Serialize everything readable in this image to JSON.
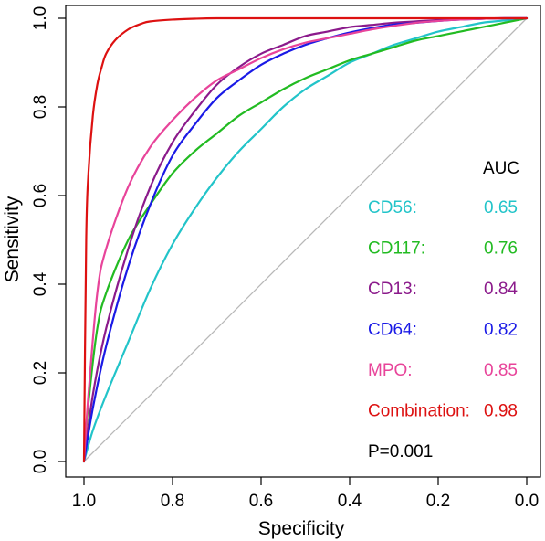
{
  "chart_data": {
    "type": "line",
    "title": "",
    "xlabel": "Specificity",
    "ylabel": "Sensitivity",
    "xlim": [
      1.0,
      0.0
    ],
    "ylim": [
      0.0,
      1.0
    ],
    "x_reversed": true,
    "grid": false,
    "xticks": [
      "1.0",
      "0.8",
      "0.6",
      "0.4",
      "0.2",
      "0.0"
    ],
    "yticks": [
      "0.0",
      "0.2",
      "0.4",
      "0.6",
      "0.8",
      "1.0"
    ],
    "reference_line": {
      "from": [
        1.0,
        0.0
      ],
      "to": [
        0.0,
        1.0
      ],
      "color": "#b8b8b8"
    },
    "legend": {
      "header": "AUC",
      "placement": "right",
      "footer": "P=0.001"
    },
    "series": [
      {
        "name": "CD56:",
        "auc": "0.65",
        "color": "#22c4c9",
        "x": [
          1.0,
          0.98,
          0.95,
          0.9,
          0.85,
          0.8,
          0.75,
          0.7,
          0.65,
          0.6,
          0.55,
          0.5,
          0.45,
          0.4,
          0.35,
          0.3,
          0.25,
          0.2,
          0.15,
          0.1,
          0.05,
          0.0
        ],
        "y": [
          0.0,
          0.07,
          0.15,
          0.27,
          0.39,
          0.49,
          0.57,
          0.64,
          0.7,
          0.75,
          0.8,
          0.84,
          0.87,
          0.9,
          0.92,
          0.94,
          0.955,
          0.97,
          0.98,
          0.99,
          0.995,
          1.0
        ]
      },
      {
        "name": "CD117:",
        "auc": "0.76",
        "color": "#22bb22",
        "x": [
          1.0,
          0.99,
          0.97,
          0.95,
          0.9,
          0.85,
          0.8,
          0.75,
          0.7,
          0.65,
          0.6,
          0.55,
          0.5,
          0.45,
          0.4,
          0.35,
          0.3,
          0.25,
          0.2,
          0.15,
          0.1,
          0.05,
          0.0
        ],
        "y": [
          0.0,
          0.13,
          0.3,
          0.38,
          0.5,
          0.58,
          0.65,
          0.7,
          0.74,
          0.78,
          0.81,
          0.84,
          0.865,
          0.885,
          0.905,
          0.92,
          0.935,
          0.95,
          0.96,
          0.97,
          0.98,
          0.99,
          1.0
        ]
      },
      {
        "name": "CD13:",
        "auc": "0.84",
        "color": "#8b1a8b",
        "x": [
          1.0,
          0.98,
          0.95,
          0.9,
          0.85,
          0.8,
          0.75,
          0.7,
          0.65,
          0.6,
          0.55,
          0.5,
          0.45,
          0.4,
          0.35,
          0.3,
          0.25,
          0.2,
          0.15,
          0.1,
          0.05,
          0.0
        ],
        "y": [
          0.0,
          0.15,
          0.3,
          0.48,
          0.62,
          0.72,
          0.79,
          0.85,
          0.89,
          0.92,
          0.94,
          0.96,
          0.97,
          0.98,
          0.985,
          0.99,
          0.993,
          0.996,
          0.998,
          0.999,
          1.0,
          1.0
        ]
      },
      {
        "name": "CD64:",
        "auc": "0.82",
        "color": "#1a1ae6",
        "x": [
          1.0,
          0.98,
          0.95,
          0.9,
          0.85,
          0.8,
          0.75,
          0.7,
          0.65,
          0.6,
          0.55,
          0.5,
          0.45,
          0.4,
          0.35,
          0.3,
          0.25,
          0.2,
          0.15,
          0.1,
          0.05,
          0.0
        ],
        "y": [
          0.0,
          0.12,
          0.26,
          0.44,
          0.58,
          0.69,
          0.76,
          0.82,
          0.86,
          0.895,
          0.92,
          0.94,
          0.955,
          0.968,
          0.978,
          0.986,
          0.99,
          0.994,
          0.997,
          0.999,
          1.0,
          1.0
        ]
      },
      {
        "name": "MPO:",
        "auc": "0.85",
        "color": "#e8449a",
        "x": [
          1.0,
          0.99,
          0.97,
          0.95,
          0.9,
          0.85,
          0.8,
          0.75,
          0.7,
          0.65,
          0.6,
          0.55,
          0.5,
          0.45,
          0.4,
          0.35,
          0.3,
          0.25,
          0.2,
          0.15,
          0.1,
          0.05,
          0.0
        ],
        "y": [
          0.0,
          0.15,
          0.38,
          0.48,
          0.62,
          0.71,
          0.77,
          0.82,
          0.86,
          0.885,
          0.91,
          0.93,
          0.945,
          0.955,
          0.965,
          0.975,
          0.983,
          0.99,
          0.994,
          0.997,
          0.999,
          1.0,
          1.0
        ]
      },
      {
        "name": "Combination:",
        "auc": "0.98",
        "color": "#dd1111",
        "x": [
          1.0,
          0.995,
          0.99,
          0.98,
          0.97,
          0.96,
          0.95,
          0.93,
          0.9,
          0.87,
          0.85,
          0.8,
          0.75,
          0.7,
          0.6,
          0.5,
          0.4,
          0.3,
          0.2,
          0.1,
          0.0
        ],
        "y": [
          0.0,
          0.5,
          0.65,
          0.78,
          0.85,
          0.89,
          0.92,
          0.95,
          0.975,
          0.988,
          0.993,
          0.997,
          0.999,
          1.0,
          1.0,
          1.0,
          1.0,
          1.0,
          1.0,
          1.0,
          1.0
        ]
      }
    ]
  }
}
